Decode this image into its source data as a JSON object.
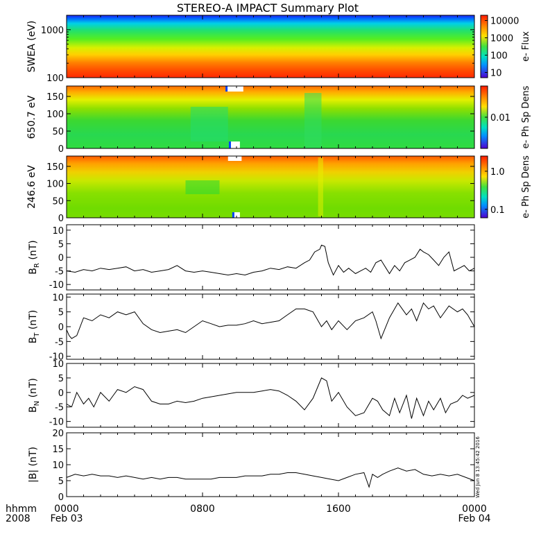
{
  "title": "STEREO-A IMPACT Summary Plot",
  "stamp": "Wed Jun  8 13:45:42 2016",
  "x_axis": {
    "label_top": "hhmm",
    "label_bottom": "2008",
    "ticks": [
      {
        "t": 0,
        "top": "0000",
        "bottom": "Feb 03"
      },
      {
        "t": 8,
        "top": "0800",
        "bottom": ""
      },
      {
        "t": 16,
        "top": "1600",
        "bottom": ""
      },
      {
        "t": 24,
        "top": "0000",
        "bottom": "Feb 04"
      }
    ],
    "xlim_hours": [
      0,
      24
    ]
  },
  "chart_data": [
    {
      "id": "swea",
      "type": "heatmap",
      "ylabel": "SWEA (eV)",
      "yscale": "log",
      "ylim": [
        100,
        2000
      ],
      "y_ticks": [
        {
          "v": 100,
          "label": "100"
        },
        {
          "v": 1000,
          "label": "1000"
        }
      ],
      "colorbar": {
        "label": "e- Flux",
        "scale": "log",
        "range": [
          5,
          20000
        ],
        "ticks": [
          {
            "v": 10,
            "label": "10"
          },
          {
            "v": 100,
            "label": "100"
          },
          {
            "v": 1000,
            "label": "1000"
          },
          {
            "v": 10000,
            "label": "10000"
          }
        ]
      }
    },
    {
      "id": "pad650",
      "type": "heatmap",
      "ylabel": "650.7 eV",
      "ylim": [
        0,
        180
      ],
      "y_ticks": [
        {
          "v": 0,
          "label": "0"
        },
        {
          "v": 50,
          "label": "50"
        },
        {
          "v": 100,
          "label": "100"
        },
        {
          "v": 150,
          "label": "150"
        }
      ],
      "colorbar": {
        "label": "e- Ph Sp Dens",
        "scale": "log",
        "range": [
          0.001,
          0.1
        ],
        "ticks": [
          {
            "v": 0.01,
            "label": "0.01"
          }
        ]
      }
    },
    {
      "id": "pad246",
      "type": "heatmap",
      "ylabel": "246.6 eV",
      "ylim": [
        0,
        180
      ],
      "y_ticks": [
        {
          "v": 0,
          "label": "0"
        },
        {
          "v": 50,
          "label": "50"
        },
        {
          "v": 100,
          "label": "100"
        },
        {
          "v": 150,
          "label": "150"
        }
      ],
      "colorbar": {
        "label": "e- Ph Sp Dens",
        "scale": "log",
        "range": [
          0.06,
          2.5
        ],
        "ticks": [
          {
            "v": 0.1,
            "label": "0.1"
          },
          {
            "v": 1.0,
            "label": "1.0"
          }
        ]
      }
    },
    {
      "id": "br",
      "type": "line",
      "ylabel_main": "B",
      "ylabel_sub": "R",
      "ylabel_unit": "(nT)",
      "ylim": [
        -12,
        12
      ],
      "y_ticks": [
        {
          "v": -10,
          "label": "-10"
        },
        {
          "v": -5,
          "label": "-5"
        },
        {
          "v": 0,
          "label": "0"
        },
        {
          "v": 5,
          "label": "5"
        },
        {
          "v": 10,
          "label": "10"
        }
      ],
      "x": [
        0,
        0.5,
        1.0,
        1.5,
        2.0,
        2.5,
        3.0,
        3.5,
        4.0,
        4.5,
        5.0,
        5.5,
        6.0,
        6.5,
        7.0,
        7.5,
        8.0,
        8.5,
        9.0,
        9.5,
        10.0,
        10.5,
        11.0,
        11.5,
        12.0,
        12.5,
        13.0,
        13.5,
        14.0,
        14.3,
        14.6,
        14.9,
        15.0,
        15.2,
        15.4,
        15.7,
        16.0,
        16.3,
        16.6,
        17.0,
        17.3,
        17.6,
        17.9,
        18.2,
        18.5,
        18.8,
        19.0,
        19.3,
        19.6,
        19.9,
        20.2,
        20.5,
        20.8,
        21.0,
        21.3,
        21.6,
        21.9,
        22.2,
        22.5,
        22.8,
        23.1,
        23.4,
        23.7,
        24.0
      ],
      "y": [
        -5,
        -5.5,
        -4.5,
        -5,
        -4,
        -4.5,
        -4,
        -3.5,
        -5,
        -4.5,
        -5.5,
        -5,
        -4.5,
        -3,
        -5,
        -5.5,
        -5,
        -5.5,
        -6,
        -6.5,
        -6,
        -6.5,
        -5.5,
        -5,
        -4,
        -4.5,
        -3.5,
        -4,
        -2,
        -1,
        2,
        3,
        4.5,
        4,
        -2,
        -6.5,
        -3,
        -5.5,
        -4,
        -6,
        -5,
        -4,
        -5.5,
        -2,
        -1,
        -4,
        -6,
        -3,
        -5,
        -2,
        -1,
        0,
        3,
        2,
        1,
        -1,
        -3,
        0,
        2,
        -5,
        -4,
        -3,
        -5,
        -4
      ]
    },
    {
      "id": "bt",
      "type": "line",
      "ylabel_main": "B",
      "ylabel_sub": "T",
      "ylabel_unit": "(nT)",
      "ylim": [
        -11,
        11
      ],
      "y_ticks": [
        {
          "v": -10,
          "label": "-10"
        },
        {
          "v": -5,
          "label": "-5"
        },
        {
          "v": 0,
          "label": "0"
        },
        {
          "v": 5,
          "label": "5"
        },
        {
          "v": 10,
          "label": "10"
        }
      ],
      "x": [
        0,
        0.15,
        0.3,
        0.6,
        1.0,
        1.5,
        2.0,
        2.5,
        3.0,
        3.5,
        4.0,
        4.5,
        5.0,
        5.5,
        6.0,
        6.5,
        7.0,
        7.5,
        8.0,
        8.5,
        9.0,
        9.5,
        10.0,
        10.5,
        11.0,
        11.5,
        12.0,
        12.5,
        13.0,
        13.5,
        14.0,
        14.5,
        15.0,
        15.3,
        15.6,
        16.0,
        16.5,
        17.0,
        17.5,
        18.0,
        18.2,
        18.5,
        19.0,
        19.5,
        20.0,
        20.3,
        20.6,
        21.0,
        21.3,
        21.6,
        22.0,
        22.5,
        23.0,
        23.3,
        23.6,
        24.0
      ],
      "y": [
        -1,
        -3,
        -4,
        -3,
        3,
        2,
        4,
        3,
        5,
        4,
        5,
        1,
        -1,
        -2,
        -1.5,
        -1,
        -2,
        0,
        2,
        1,
        0,
        0.5,
        0.5,
        1,
        2,
        1,
        1.5,
        2,
        4,
        6,
        6,
        5,
        0,
        2,
        -1,
        2,
        -1,
        2,
        3,
        5,
        2,
        -4,
        3,
        8,
        4,
        6,
        2,
        8,
        6,
        7,
        3,
        7,
        5,
        6,
        4,
        0
      ]
    },
    {
      "id": "bn",
      "type": "line",
      "ylabel_main": "B",
      "ylabel_sub": "N",
      "ylabel_unit": "(nT)",
      "ylim": [
        -12,
        10
      ],
      "y_ticks": [
        {
          "v": -10,
          "label": "-10"
        },
        {
          "v": -5,
          "label": "-5"
        },
        {
          "v": 0,
          "label": "0"
        },
        {
          "v": 5,
          "label": "5"
        },
        {
          "v": 10,
          "label": "10"
        }
      ],
      "x": [
        0,
        0.3,
        0.6,
        1.0,
        1.3,
        1.6,
        2.0,
        2.5,
        3.0,
        3.5,
        4.0,
        4.5,
        5.0,
        5.5,
        6.0,
        6.5,
        7.0,
        7.5,
        8.0,
        8.5,
        9.0,
        9.5,
        10.0,
        10.5,
        11.0,
        11.5,
        12.0,
        12.5,
        13.0,
        13.5,
        14.0,
        14.5,
        15.0,
        15.3,
        15.6,
        16.0,
        16.5,
        17.0,
        17.5,
        18.0,
        18.3,
        18.6,
        19.0,
        19.3,
        19.6,
        20.0,
        20.3,
        20.6,
        21.0,
        21.3,
        21.6,
        22.0,
        22.3,
        22.6,
        23.0,
        23.3,
        23.6,
        24.0
      ],
      "y": [
        -4,
        -5,
        0,
        -4,
        -2,
        -5,
        0,
        -3,
        1,
        0,
        2,
        1,
        -3,
        -4,
        -4,
        -3,
        -3.5,
        -3,
        -2,
        -1.5,
        -1,
        -0.5,
        0,
        0,
        0,
        0.5,
        1,
        0.5,
        -1,
        -3,
        -6,
        -2,
        5,
        4,
        -3,
        0,
        -5,
        -8,
        -7,
        -2,
        -3,
        -6,
        -8,
        -2,
        -7,
        -1,
        -9,
        -2,
        -8,
        -3,
        -6,
        -2,
        -7,
        -4,
        -3,
        -1,
        -2,
        -1
      ]
    },
    {
      "id": "b",
      "type": "line",
      "ylabel_main": "|B|",
      "ylabel_sub": "",
      "ylabel_unit": "(nT)",
      "ylim": [
        0,
        20
      ],
      "y_ticks": [
        {
          "v": 0,
          "label": "0"
        },
        {
          "v": 5,
          "label": "5"
        },
        {
          "v": 10,
          "label": "10"
        },
        {
          "v": 15,
          "label": "15"
        },
        {
          "v": 20,
          "label": "20"
        }
      ],
      "x": [
        0,
        0.5,
        1.0,
        1.5,
        2.0,
        2.5,
        3.0,
        3.5,
        4.0,
        4.5,
        5.0,
        5.5,
        6.0,
        6.5,
        7.0,
        7.5,
        8.0,
        8.5,
        9.0,
        9.5,
        10.0,
        10.5,
        11.0,
        11.5,
        12.0,
        12.5,
        13.0,
        13.5,
        14.0,
        14.5,
        15.0,
        15.5,
        16.0,
        16.5,
        17.0,
        17.5,
        17.8,
        18.0,
        18.3,
        18.6,
        19.0,
        19.5,
        20.0,
        20.5,
        21.0,
        21.5,
        22.0,
        22.5,
        23.0,
        23.5,
        24.0
      ],
      "y": [
        6,
        7,
        6.5,
        7,
        6.5,
        6.5,
        6,
        6.5,
        6,
        5.5,
        6,
        5.5,
        6,
        6,
        5.5,
        5.5,
        5.5,
        5.5,
        6,
        6,
        6,
        6.5,
        6.5,
        6.5,
        7,
        7,
        7.5,
        7.5,
        7,
        6.5,
        6,
        5.5,
        5,
        6,
        7,
        7.5,
        3,
        7,
        6,
        7,
        8,
        9,
        8,
        8.5,
        7,
        6.5,
        7,
        6.5,
        7,
        6,
        5
      ]
    }
  ]
}
